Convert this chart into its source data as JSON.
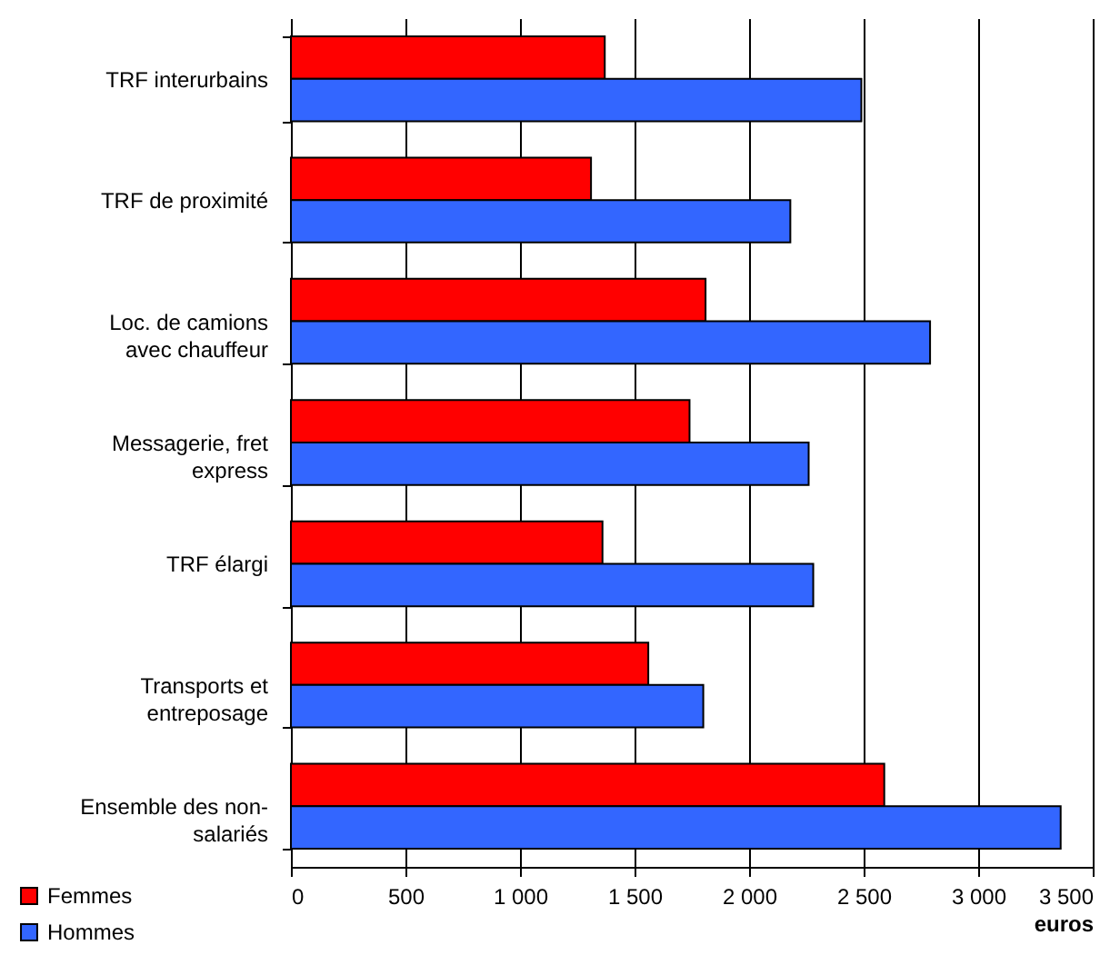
{
  "chart_data": {
    "type": "bar",
    "orientation": "horizontal",
    "xlabel": "euros",
    "categories": [
      "TRF interurbains",
      "TRF de proximité",
      "Loc. de camions avec chauffeur",
      "Messagerie, fret express",
      "TRF élargi",
      "Transports et entreposage",
      "Ensemble des non-salariés"
    ],
    "series": [
      {
        "name": "Femmes",
        "color": "#ff0000",
        "values": [
          1370,
          1310,
          1810,
          1740,
          1360,
          1560,
          2590
        ]
      },
      {
        "name": "Hommes",
        "color": "#3366ff",
        "values": [
          2490,
          2180,
          2790,
          2260,
          2280,
          1800,
          3360
        ]
      }
    ],
    "xlim": [
      0,
      3500
    ],
    "xticks": [
      0,
      500,
      1000,
      1500,
      2000,
      2500,
      3000,
      3500
    ],
    "grid": "x",
    "legend": "bottom left"
  }
}
